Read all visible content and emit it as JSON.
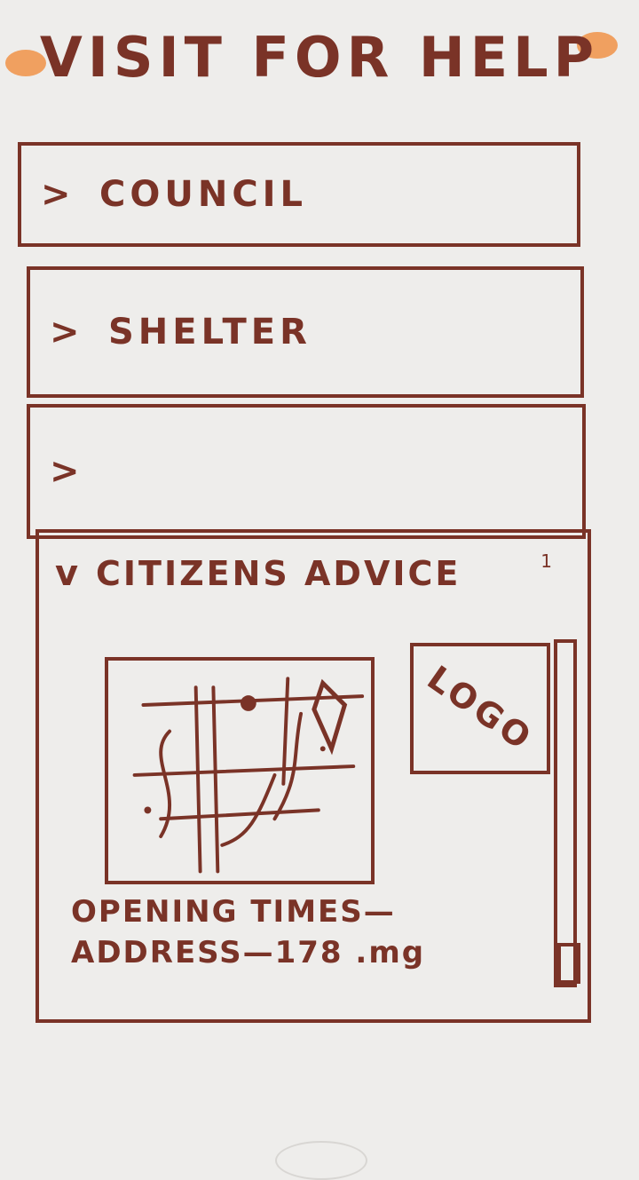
{
  "header": {
    "title": "VISIT FOR HELP"
  },
  "accordion": {
    "items": [
      {
        "chevron": ">",
        "label": "COUNCIL"
      },
      {
        "chevron": ">",
        "label": "SHELTER"
      },
      {
        "chevron": ">",
        "label": ""
      }
    ],
    "expanded": {
      "chevron": "v",
      "label": "CITIZENS ADVICE",
      "number": "1",
      "logo_label": "LOGO",
      "opening_times_label": "OPENING TIMES—",
      "address_label": "ADDRESS—178 .mg"
    }
  },
  "colors": {
    "ink": "#7a3327",
    "accent": "#f0a060",
    "paper": "#eeedeb"
  },
  "icons": {
    "collapsed": "chevron-right-icon",
    "expanded": "chevron-down-icon",
    "map_pin": "map-pin-icon"
  }
}
